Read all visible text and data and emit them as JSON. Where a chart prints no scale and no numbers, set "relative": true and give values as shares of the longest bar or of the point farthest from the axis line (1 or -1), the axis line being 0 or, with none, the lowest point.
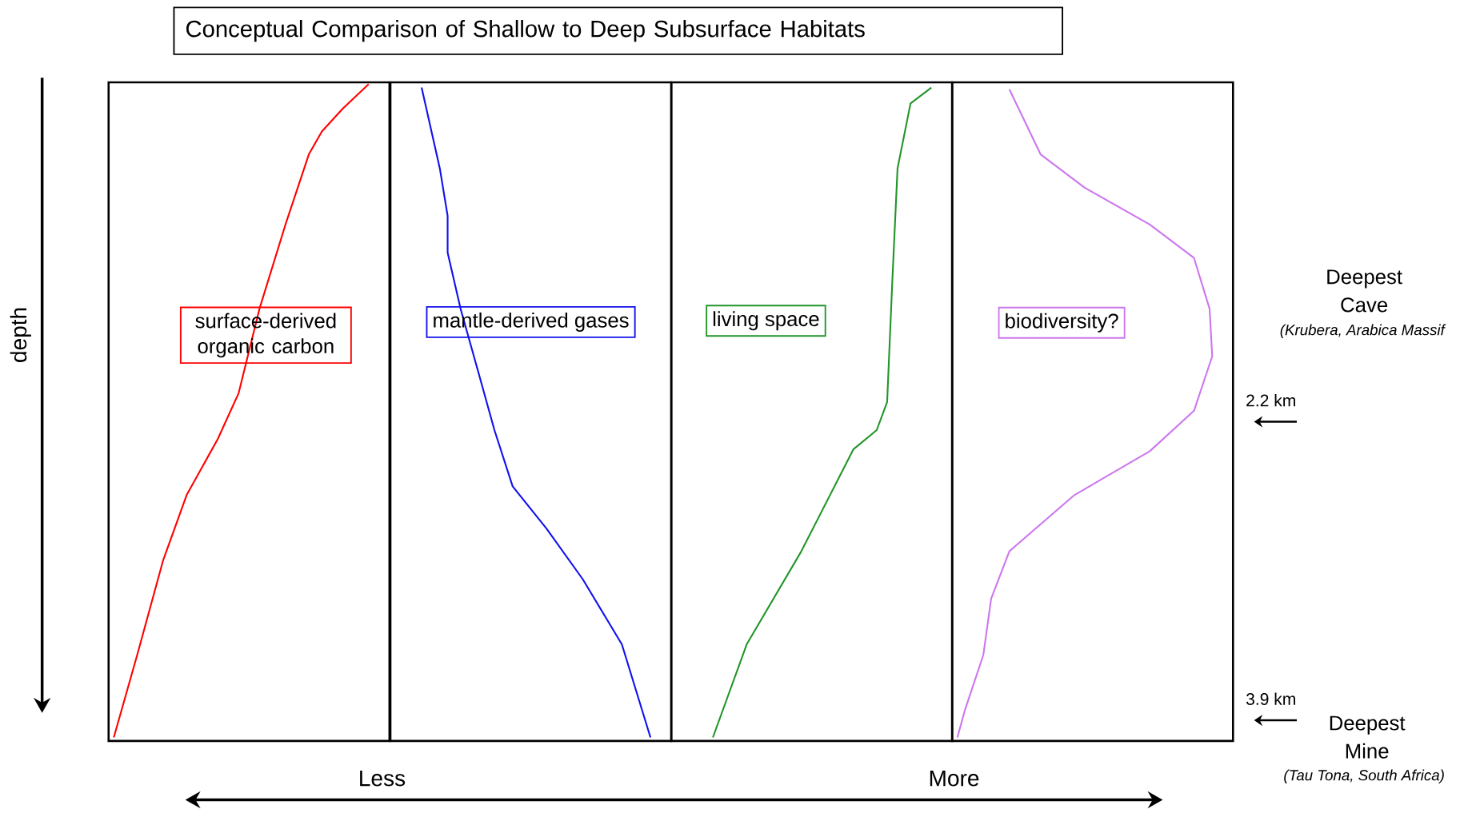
{
  "chart_data": [
    {
      "type": "line",
      "orientation": "horizontal",
      "relative": true,
      "title": "Conceptual Comparison of Shallow to Deep Subsurface Habitats",
      "ylabel": "depth",
      "annotations": [
        "Less",
        "More"
      ],
      "tick_labels": false,
      "ylim": [
        4.14,
        0.39
      ],
      "x": [
        4.12,
        3.65,
        3.11,
        2.74,
        2.42,
        2.16,
        1.68,
        1.2,
        0.8,
        0.67,
        0.54,
        0.4
      ],
      "series": [
        {
          "name": "surface-derived organic carbon",
          "color": "#ff0000",
          "values": [
            0.02,
            0.11,
            0.21,
            0.3,
            0.42,
            0.5,
            0.58,
            0.68,
            0.77,
            0.82,
            0.9,
            1
          ]
        }
      ]
    },
    {
      "type": "line",
      "orientation": "horizontal",
      "relative": true,
      "tick_labels": false,
      "ylim": [
        4.14,
        0.39
      ],
      "x": [
        0.42,
        0.88,
        1.15,
        1.36,
        1.68,
        2.05,
        2.37,
        2.69,
        2.93,
        3.22,
        3.59,
        4.12
      ],
      "series": [
        {
          "name": "mantle-derived gases",
          "color": "#1010ee",
          "values": [
            0.12,
            0.19,
            0.22,
            0.22,
            0.27,
            0.34,
            0.4,
            0.47,
            0.6,
            0.74,
            0.89,
            1
          ]
        }
      ]
    },
    {
      "type": "line",
      "orientation": "horizontal",
      "relative": true,
      "tick_labels": false,
      "ylim": [
        4.14,
        0.39
      ],
      "x": [
        4.12,
        3.59,
        3.06,
        2.48,
        2.37,
        2.21,
        1.52,
        0.88,
        0.51,
        0.42
      ],
      "series": [
        {
          "name": "living space",
          "color": "#22952a",
          "values": [
            0.16,
            0.29,
            0.5,
            0.7,
            0.79,
            0.83,
            0.85,
            0.87,
            0.92,
            1
          ]
        }
      ]
    },
    {
      "type": "line",
      "orientation": "horizontal",
      "relative": true,
      "tick_labels": "y",
      "ylim": [
        4.14,
        0.39
      ],
      "yticks": [
        {
          "value": 2.2,
          "label": "2.2 km"
        },
        {
          "value": 3.9,
          "label": "3.9  km"
        }
      ],
      "annotations": [
        "Deepest Cave",
        "(Krubera, Arabica Massif",
        "Deepest Mine",
        "(Tau Tona, South Africa)"
      ],
      "x": [
        0.43,
        0.8,
        0.99,
        1.2,
        1.39,
        1.68,
        1.95,
        2.26,
        2.49,
        2.74,
        3.06,
        3.33,
        3.65,
        3.96,
        4.12
      ],
      "series": [
        {
          "name": "biodiversity?",
          "color": "#cc77ee",
          "values": [
            0.22,
            0.34,
            0.51,
            0.76,
            0.93,
            0.99,
            1,
            0.93,
            0.76,
            0.47,
            0.22,
            0.15,
            0.12,
            0.05,
            0.02
          ]
        }
      ]
    }
  ]
}
